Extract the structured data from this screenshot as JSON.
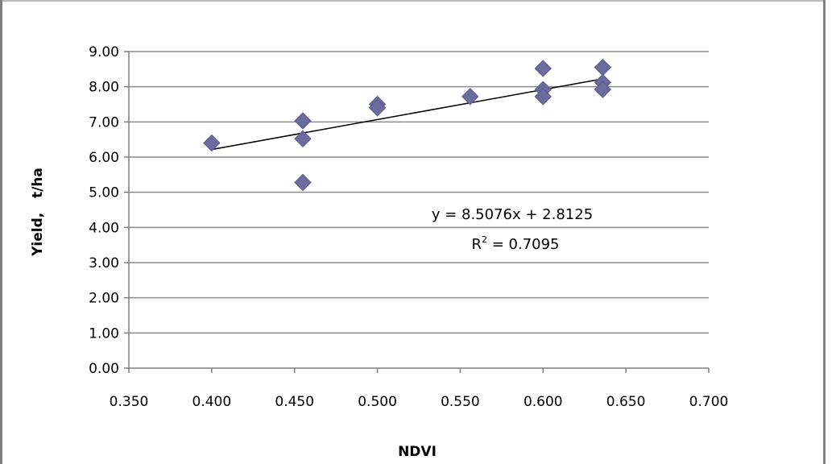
{
  "chart_data": {
    "type": "scatter",
    "xlabel": "NDVI",
    "ylabel": "Yield,   t/ha",
    "xlim": [
      0.35,
      0.7
    ],
    "ylim": [
      0.0,
      9.0
    ],
    "x_ticks": [
      "0.350",
      "0.400",
      "0.450",
      "0.500",
      "0.550",
      "0.600",
      "0.650",
      "0.700"
    ],
    "y_ticks": [
      "0.00",
      "1.00",
      "2.00",
      "3.00",
      "4.00",
      "5.00",
      "6.00",
      "7.00",
      "8.00",
      "9.00"
    ],
    "grid": "horizontal",
    "points": [
      {
        "x": 0.4,
        "y": 6.4
      },
      {
        "x": 0.455,
        "y": 7.03
      },
      {
        "x": 0.455,
        "y": 6.52
      },
      {
        "x": 0.455,
        "y": 5.28
      },
      {
        "x": 0.5,
        "y": 7.5
      },
      {
        "x": 0.5,
        "y": 7.4
      },
      {
        "x": 0.556,
        "y": 7.72
      },
      {
        "x": 0.6,
        "y": 8.52
      },
      {
        "x": 0.6,
        "y": 7.92
      },
      {
        "x": 0.6,
        "y": 7.72
      },
      {
        "x": 0.636,
        "y": 8.55
      },
      {
        "x": 0.636,
        "y": 8.12
      },
      {
        "x": 0.636,
        "y": 7.92
      }
    ],
    "trendline": {
      "x_range": [
        0.4,
        0.636
      ],
      "equation": "y = 8.5076x + 2.8125",
      "r2_label": "R",
      "r2_sup": "2",
      "r2_value": " = 0.7095"
    },
    "marker_color": "#6b6b9e",
    "line_color": "#000000",
    "grid_color": "#8c8c8c"
  }
}
